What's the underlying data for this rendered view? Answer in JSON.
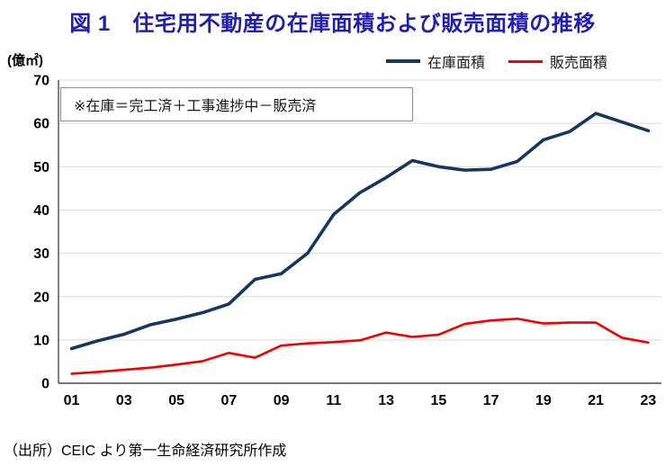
{
  "figure": {
    "title": "図 1　住宅用不動産の在庫面積および販売面積の推移"
  },
  "source": {
    "text": "（出所）CEIC より第一生命経済研究所作成"
  },
  "colors": {
    "title_blue": "#211fb0",
    "inventory_line": "#17375e",
    "sales_line": "#f20000",
    "gridline": "#d9d9d9",
    "axis": "#4d4d4d",
    "tick_text": "#000000"
  },
  "chart_data": {
    "type": "line",
    "title": "図 1　住宅用不動産の在庫面積および販売面積の推移",
    "ylabel": "(億㎡)",
    "annotation": "※在庫＝完工済＋工事進捗中－販売済",
    "x": [
      2001,
      2002,
      2003,
      2004,
      2005,
      2006,
      2007,
      2008,
      2009,
      2010,
      2011,
      2012,
      2013,
      2014,
      2015,
      2016,
      2017,
      2018,
      2019,
      2020,
      2021,
      2022,
      2023
    ],
    "xtick_labels": [
      "01",
      "03",
      "05",
      "07",
      "09",
      "11",
      "13",
      "15",
      "17",
      "19",
      "21",
      "23"
    ],
    "xtick_years": [
      2001,
      2003,
      2005,
      2007,
      2009,
      2011,
      2013,
      2015,
      2017,
      2019,
      2021,
      2023
    ],
    "yticks": [
      0,
      10,
      20,
      30,
      40,
      50,
      60,
      70
    ],
    "ylim": [
      0,
      70
    ],
    "grid": "horizontal",
    "legend_position": "top-right",
    "series": [
      {
        "name": "在庫面積",
        "color": "#17375e",
        "values": [
          8.0,
          9.8,
          11.3,
          13.5,
          14.8,
          16.3,
          18.3,
          24.0,
          25.3,
          30.0,
          39.0,
          44.0,
          47.5,
          51.4,
          50.0,
          49.2,
          49.4,
          51.2,
          56.2,
          58.1,
          62.3,
          60.3,
          58.3
        ]
      },
      {
        "name": "販売面積",
        "color": "#f20000",
        "values": [
          2.2,
          2.6,
          3.1,
          3.6,
          4.3,
          5.1,
          7.0,
          5.9,
          8.7,
          9.2,
          9.5,
          9.9,
          11.7,
          10.7,
          11.2,
          13.7,
          14.5,
          14.9,
          13.8,
          14.0,
          14.0,
          10.5,
          9.4
        ]
      }
    ]
  }
}
